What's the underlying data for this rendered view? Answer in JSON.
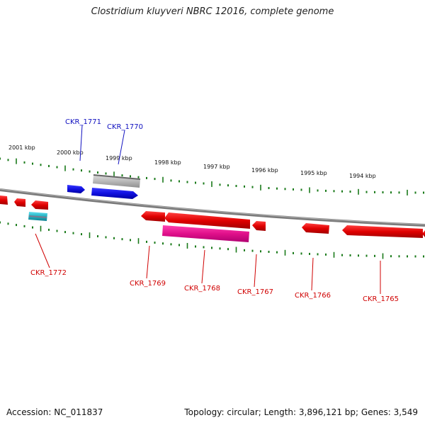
{
  "title": "Clostridium kluyveri NBRC 12016, complete genome",
  "footer": {
    "accession": "Accession: NC_011837",
    "topology": "Topology: circular; Length: 3,896,121 bp; Genes: 3,549"
  },
  "scale_labels": [
    "2001 kbp",
    "2000 kbp",
    "1999 kbp",
    "1998 kbp",
    "1997 kbp",
    "1996 kbp",
    "1995 kbp",
    "1994 kbp"
  ],
  "colors": {
    "forward_gene": "#1010e0",
    "reverse_gene": "#e00000",
    "magenta_gene": "#e0108a",
    "grey_gene": "#b0b0b0",
    "cyan_gene": "#20b0c0",
    "backbone": "#888888",
    "tick": "#1a7a1a"
  },
  "gene_labels": [
    {
      "id": "CKR_1771",
      "strand": "forward"
    },
    {
      "id": "CKR_1770",
      "strand": "forward"
    },
    {
      "id": "CKR_1772",
      "strand": "reverse"
    },
    {
      "id": "CKR_1769",
      "strand": "reverse"
    },
    {
      "id": "CKR_1768",
      "strand": "reverse"
    },
    {
      "id": "CKR_1767",
      "strand": "reverse"
    },
    {
      "id": "CKR_1766",
      "strand": "reverse"
    },
    {
      "id": "CKR_1765",
      "strand": "reverse"
    }
  ]
}
